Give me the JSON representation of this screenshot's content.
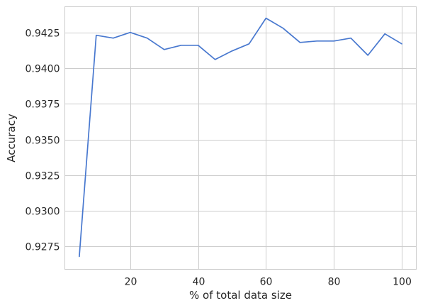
{
  "chart_data": {
    "type": "line",
    "title": "",
    "xlabel": "% of total data size",
    "ylabel": "Accuracy",
    "xlim": [
      0.75,
      104.25
    ],
    "ylim": [
      0.9259,
      0.9443
    ],
    "xticks": [
      20,
      40,
      60,
      80,
      100
    ],
    "xtick_labels": [
      "20",
      "40",
      "60",
      "80",
      "100"
    ],
    "yticks": [
      0.9275,
      0.93,
      0.9325,
      0.935,
      0.9375,
      0.94,
      0.9425
    ],
    "ytick_labels": [
      "0.9275",
      "0.9300",
      "0.9325",
      "0.9350",
      "0.9375",
      "0.9400",
      "0.9425"
    ],
    "grid": true,
    "legend": "none",
    "series": [
      {
        "color": "#4878cf",
        "x": [
          5,
          10,
          15,
          20,
          25,
          30,
          35,
          40,
          45,
          50,
          55,
          60,
          65,
          70,
          75,
          80,
          85,
          90,
          95,
          100
        ],
        "y": [
          0.9268,
          0.9423,
          0.9421,
          0.9425,
          0.9421,
          0.9413,
          0.9416,
          0.9416,
          0.9406,
          0.9412,
          0.9417,
          0.9435,
          0.9428,
          0.9418,
          0.9419,
          0.9419,
          0.9421,
          0.9409,
          0.9424,
          0.9417
        ]
      }
    ]
  }
}
